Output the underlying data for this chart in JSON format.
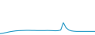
{
  "x": [
    0,
    1,
    2,
    3,
    4,
    5,
    6,
    7,
    8,
    9,
    10,
    11,
    12,
    13,
    14,
    15,
    16,
    17,
    18,
    19,
    20,
    21,
    22,
    23,
    24,
    25,
    26,
    27,
    28,
    29,
    30,
    31,
    32,
    33,
    34,
    35,
    36
  ],
  "y": [
    2,
    4,
    7,
    10,
    13,
    15,
    17,
    18,
    18.5,
    19,
    19.5,
    19.5,
    19,
    19,
    18.5,
    18.5,
    18.5,
    18.5,
    19,
    18.5,
    18,
    17.5,
    18,
    21,
    60,
    34,
    22,
    17,
    15,
    14,
    14,
    14,
    14,
    14,
    14,
    14,
    14
  ],
  "line_color": "#2196c4",
  "linewidth": 0.8,
  "background_color": "#ffffff",
  "ylim_min": -5,
  "ylim_max": 180
}
